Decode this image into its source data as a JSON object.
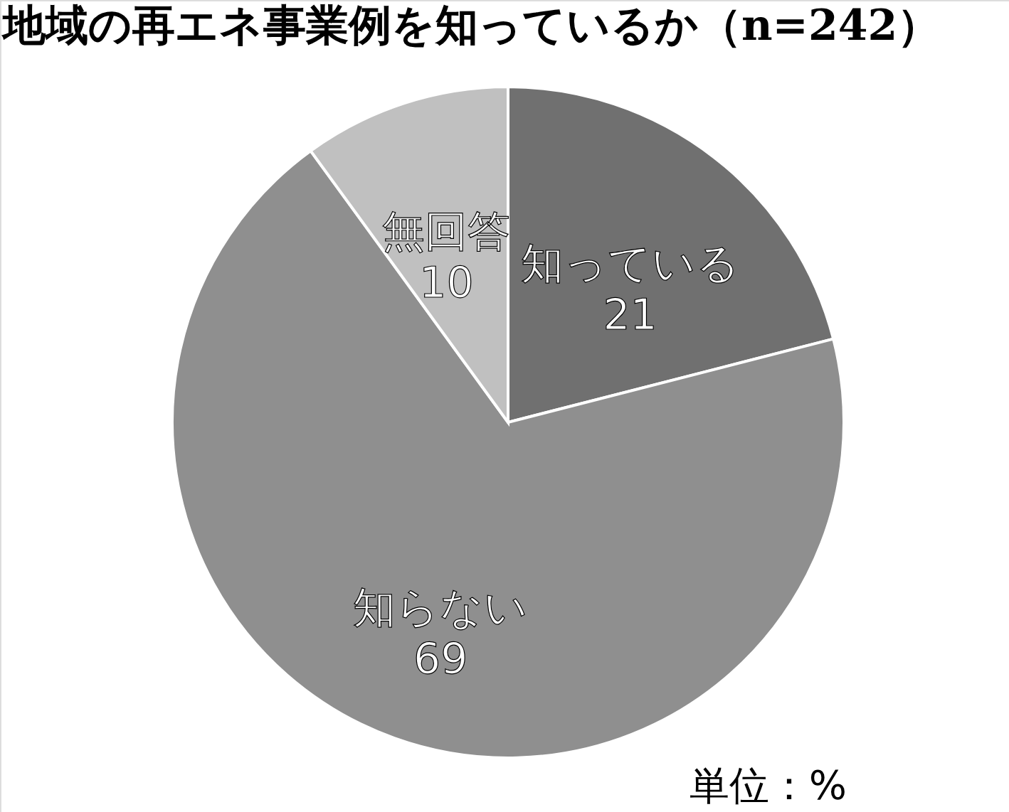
{
  "chart_data": {
    "type": "pie",
    "title": "地域の再エネ事業例を知っているか（n=242）",
    "categories": [
      "知っている",
      "知らない",
      "無回答"
    ],
    "values": [
      21,
      69,
      10
    ],
    "colors": [
      "#707070",
      "#8f8f8f",
      "#c0c0c0"
    ],
    "data_labels": true,
    "annotations": [
      "単位：%"
    ]
  }
}
